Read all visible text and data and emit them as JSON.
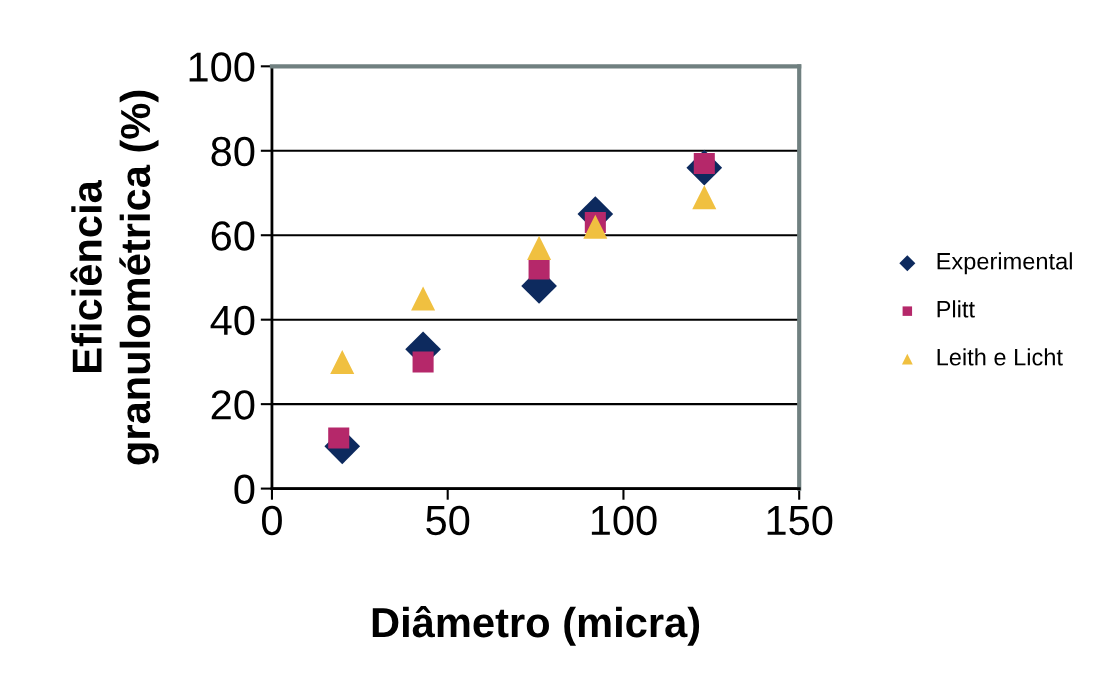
{
  "chart_data": {
    "type": "scatter",
    "xlabel": "Diâmetro (micra)",
    "ylabel": "Eficiência\ngranulométrica (%)",
    "xlim": [
      0,
      150
    ],
    "xticks": [
      0,
      50,
      100,
      150
    ],
    "ylim": [
      0,
      100
    ],
    "yticks": [
      0,
      20,
      40,
      60,
      80,
      100
    ],
    "grid": "y",
    "legend": "right",
    "series": [
      {
        "name": "Experimental",
        "color": "#0d2a5e",
        "marker": "diamond",
        "x": [
          20,
          43,
          76,
          92,
          123
        ],
        "values": [
          10,
          33,
          48,
          65,
          76
        ]
      },
      {
        "name": "Plitt",
        "color": "#b5286a",
        "marker": "square",
        "x": [
          19,
          43,
          76,
          92,
          123
        ],
        "values": [
          12,
          30,
          52,
          63,
          77
        ]
      },
      {
        "name": "Leith e Licht",
        "color": "#f0c040",
        "marker": "triangle",
        "x": [
          20,
          43,
          76,
          92,
          123
        ],
        "values": [
          30,
          45,
          57,
          62,
          69
        ]
      }
    ]
  }
}
